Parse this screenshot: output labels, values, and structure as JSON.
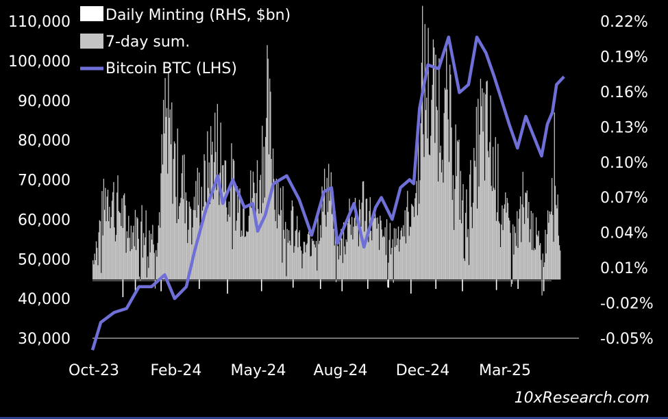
{
  "credit": "10xResearch.com",
  "chart_data": {
    "type": "bar+line",
    "title": "",
    "legend": {
      "placement": "top-left",
      "items": [
        {
          "label": "Daily Minting (RHS, $bn)",
          "kind": "bar",
          "color": "#ffffff"
        },
        {
          "label": "7-day sum.",
          "kind": "bar",
          "color": "#c4c4c4"
        },
        {
          "label": "Bitcoin BTC (LHS)",
          "kind": "line",
          "color": "#6f6fd8"
        }
      ]
    },
    "x_axis": {
      "ticks": [
        "Oct-23",
        "Feb-24",
        "May-24",
        "Aug-24",
        "Dec-24",
        "Mar-25"
      ],
      "range": [
        "2023-10-15",
        "2025-04-20"
      ]
    },
    "y_left": {
      "label": "",
      "range": [
        30000,
        110000
      ],
      "ticks": [
        "30,000",
        "40,000",
        "50,000",
        "60,000",
        "70,000",
        "80,000",
        "90,000",
        "100,000",
        "110,000"
      ],
      "tick_values": [
        30000,
        40000,
        50000,
        60000,
        70000,
        80000,
        90000,
        100000,
        110000
      ]
    },
    "y_right": {
      "label": "",
      "range": [
        -0.05,
        0.22
      ],
      "ticks": [
        "-0.05%",
        "-0.02%",
        "0.01%",
        "0.04%",
        "0.07%",
        "0.10%",
        "0.13%",
        "0.16%",
        "0.19%",
        "0.22%"
      ],
      "tick_values": [
        -0.05,
        -0.02,
        0.01,
        0.04,
        0.07,
        0.1,
        0.13,
        0.16,
        0.19,
        0.22
      ]
    },
    "series": [
      {
        "name": "Bitcoin BTC (LHS)",
        "axis": "left",
        "color": "#6f6fd8",
        "points": [
          [
            "2023-10-15",
            27000
          ],
          [
            "2023-10-25",
            34000
          ],
          [
            "2023-11-10",
            36500
          ],
          [
            "2023-11-25",
            37500
          ],
          [
            "2023-12-10",
            43000
          ],
          [
            "2023-12-25",
            43000
          ],
          [
            "2024-01-10",
            46000
          ],
          [
            "2024-01-22",
            40000
          ],
          [
            "2024-02-05",
            43000
          ],
          [
            "2024-02-15",
            52000
          ],
          [
            "2024-02-28",
            62000
          ],
          [
            "2024-03-14",
            71000
          ],
          [
            "2024-03-20",
            64000
          ],
          [
            "2024-04-01",
            70000
          ],
          [
            "2024-04-15",
            63000
          ],
          [
            "2024-04-25",
            64000
          ],
          [
            "2024-05-01",
            57000
          ],
          [
            "2024-05-10",
            61000
          ],
          [
            "2024-05-20",
            69000
          ],
          [
            "2024-06-05",
            71000
          ],
          [
            "2024-06-20",
            65000
          ],
          [
            "2024-07-05",
            56000
          ],
          [
            "2024-07-20",
            67000
          ],
          [
            "2024-07-29",
            68000
          ],
          [
            "2024-08-05",
            54000
          ],
          [
            "2024-08-15",
            59000
          ],
          [
            "2024-08-25",
            64000
          ],
          [
            "2024-09-06",
            53000
          ],
          [
            "2024-09-20",
            63000
          ],
          [
            "2024-09-27",
            65500
          ],
          [
            "2024-10-10",
            60000
          ],
          [
            "2024-10-20",
            68000
          ],
          [
            "2024-10-31",
            70000
          ],
          [
            "2024-11-05",
            69000
          ],
          [
            "2024-11-12",
            88000
          ],
          [
            "2024-11-22",
            99000
          ],
          [
            "2024-12-05",
            98000
          ],
          [
            "2024-12-17",
            106000
          ],
          [
            "2024-12-30",
            92000
          ],
          [
            "2025-01-10",
            94000
          ],
          [
            "2025-01-20",
            106000
          ],
          [
            "2025-01-31",
            102000
          ],
          [
            "2025-02-10",
            96000
          ],
          [
            "2025-02-28",
            84000
          ],
          [
            "2025-03-10",
            78000
          ],
          [
            "2025-03-20",
            86000
          ],
          [
            "2025-04-08",
            76000
          ],
          [
            "2025-04-15",
            84000
          ],
          [
            "2025-04-21",
            87000
          ],
          [
            "2025-04-26",
            94000
          ],
          [
            "2025-05-05",
            96000
          ]
        ]
      },
      {
        "name": "7-day sum.",
        "axis": "right",
        "color": "#c4c4c4",
        "points": [
          [
            "2023-10-15",
            0.02
          ],
          [
            "2023-11-01",
            0.09
          ],
          [
            "2023-11-15",
            0.075
          ],
          [
            "2023-12-01",
            0.05
          ],
          [
            "2023-12-15",
            0.06
          ],
          [
            "2024-01-01",
            0.04
          ],
          [
            "2024-01-10",
            0.165
          ],
          [
            "2024-01-25",
            0.11
          ],
          [
            "2024-02-10",
            0.08
          ],
          [
            "2024-02-25",
            0.09
          ],
          [
            "2024-03-10",
            0.14
          ],
          [
            "2024-03-20",
            0.12
          ],
          [
            "2024-04-01",
            0.095
          ],
          [
            "2024-04-15",
            0.07
          ],
          [
            "2024-05-01",
            0.1
          ],
          [
            "2024-05-12",
            0.17
          ],
          [
            "2024-05-25",
            0.09
          ],
          [
            "2024-06-10",
            0.06
          ],
          [
            "2024-06-25",
            0.03
          ],
          [
            "2024-07-10",
            0.05
          ],
          [
            "2024-07-25",
            0.1
          ],
          [
            "2024-08-05",
            0.03
          ],
          [
            "2024-08-20",
            0.07
          ],
          [
            "2024-09-05",
            0.08
          ],
          [
            "2024-09-20",
            0.05
          ],
          [
            "2024-10-10",
            0.04
          ],
          [
            "2024-10-25",
            0.06
          ],
          [
            "2024-11-08",
            0.09
          ],
          [
            "2024-11-15",
            0.2
          ],
          [
            "2024-11-25",
            0.19
          ],
          [
            "2024-12-10",
            0.18
          ],
          [
            "2024-12-25",
            0.13
          ],
          [
            "2025-01-05",
            0.06
          ],
          [
            "2025-01-15",
            0.1
          ],
          [
            "2025-01-25",
            0.16
          ],
          [
            "2025-02-05",
            0.14
          ],
          [
            "2025-02-20",
            0.07
          ],
          [
            "2025-03-05",
            0.04
          ],
          [
            "2025-03-15",
            0.08
          ],
          [
            "2025-03-30",
            0.05
          ],
          [
            "2025-04-10",
            0.02
          ],
          [
            "2025-04-22",
            0.13
          ],
          [
            "2025-04-30",
            0.05
          ]
        ]
      },
      {
        "name": "Daily Minting (RHS, $bn)",
        "axis": "right",
        "color": "#ffffff",
        "points": [
          [
            "2023-11-20",
            -0.015
          ],
          [
            "2023-12-05",
            -0.01
          ],
          [
            "2024-01-05",
            -0.01
          ],
          [
            "2024-02-20",
            -0.008
          ],
          [
            "2024-03-25",
            -0.012
          ],
          [
            "2024-05-05",
            -0.01
          ],
          [
            "2024-06-12",
            -0.007
          ],
          [
            "2024-07-15",
            -0.008
          ],
          [
            "2024-08-10",
            -0.01
          ],
          [
            "2024-09-10",
            -0.008
          ],
          [
            "2024-10-05",
            -0.007
          ],
          [
            "2024-11-01",
            -0.012
          ],
          [
            "2024-12-01",
            -0.008
          ],
          [
            "2025-01-02",
            -0.01
          ],
          [
            "2025-02-12",
            -0.009
          ],
          [
            "2025-03-10",
            -0.008
          ],
          [
            "2025-04-10",
            -0.01
          ]
        ]
      }
    ]
  }
}
